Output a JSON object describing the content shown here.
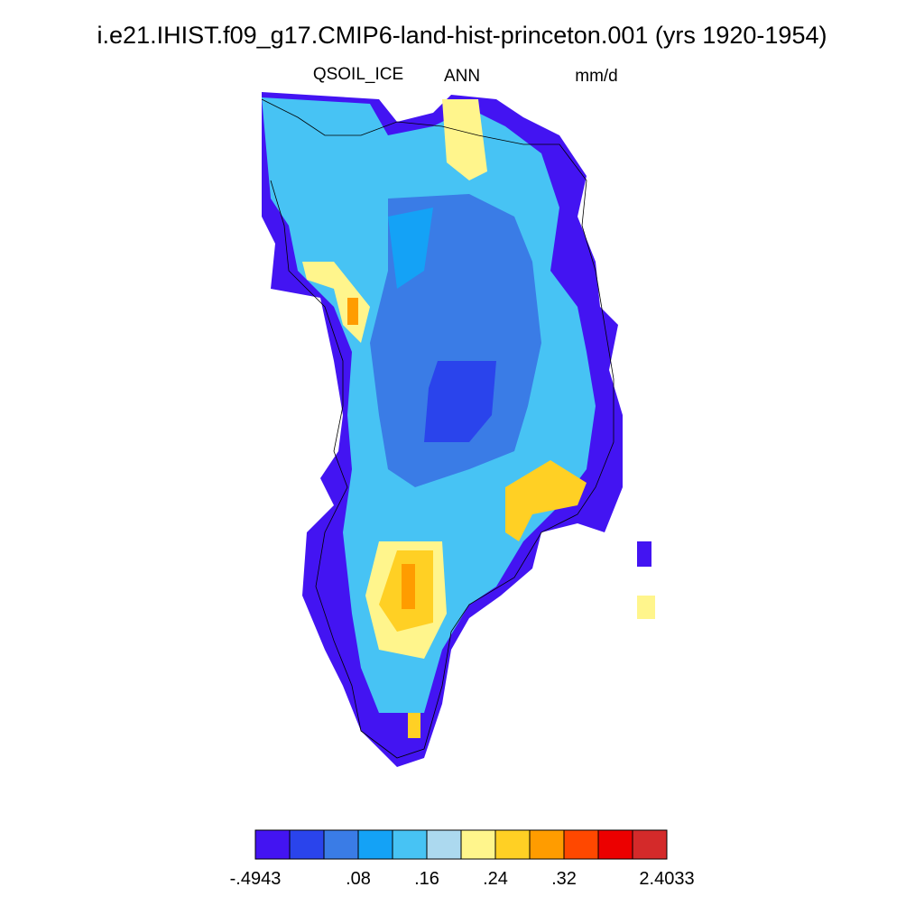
{
  "header": {
    "title": "i.e21.IHIST.f09_g17.CMIP6-land-hist-princeton.001 (yrs 1920-1954)",
    "variable": "QSOIL_ICE",
    "period": "ANN",
    "units": "mm/d"
  },
  "colorbar": {
    "colors": [
      "#4314f2",
      "#2a44ec",
      "#3a7ce6",
      "#14a2f6",
      "#47c3f4",
      "#acd9ef",
      "#fff58c",
      "#ffd024",
      "#ff9c00",
      "#ff4800",
      "#ec0000",
      "#d42a2a"
    ],
    "labels": [
      "-.4943",
      ".08",
      ".16",
      ".24",
      ".32",
      "2.4033"
    ]
  }
}
